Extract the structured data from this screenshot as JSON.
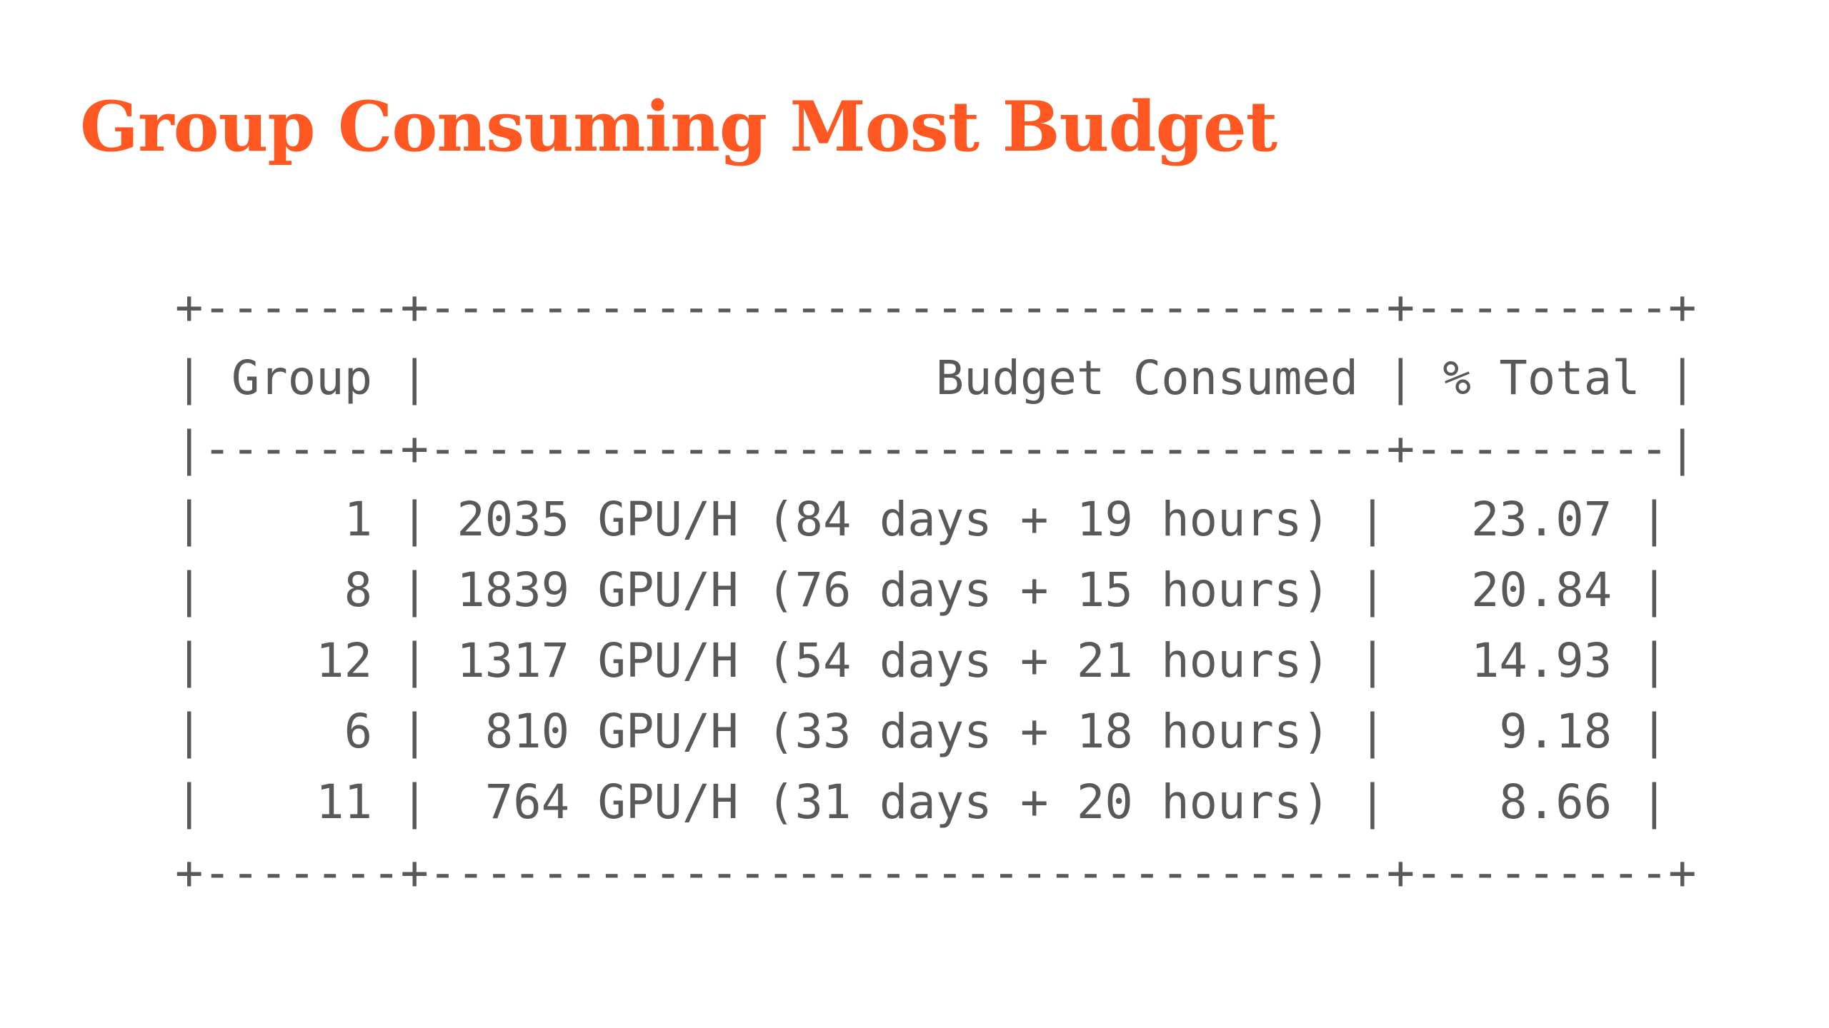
{
  "slide": {
    "title": "Group Consuming Most Budget"
  },
  "table": {
    "lines": {
      "top_border": "+-------+----------------------------------+---------+",
      "header": "| Group |                  Budget Consumed | % Total |",
      "header_separator": "|-------+----------------------------------+---------|",
      "rows": [
        "|     1 | 2035 GPU/H (84 days + 19 hours) |   23.07 |",
        "|     8 | 1839 GPU/H (76 days + 15 hours) |   20.84 |",
        "|    12 | 1317 GPU/H (54 days + 21 hours) |   14.93 |",
        "|     6 |  810 GPU/H (33 days + 18 hours) |    9.18 |",
        "|    11 |  764 GPU/H (31 days + 20 hours) |    8.66 |"
      ],
      "bottom_border": "+-------+----------------------------------+---------+"
    },
    "columns": [
      "Group",
      "Budget Consumed",
      "% Total"
    ],
    "data": [
      {
        "group": "1",
        "budget": "2035 GPU/H (84 days + 19 hours)",
        "percent": "23.07"
      },
      {
        "group": "8",
        "budget": "1839 GPU/H (76 days + 15 hours)",
        "percent": "20.84"
      },
      {
        "group": "12",
        "budget": "1317 GPU/H (54 days + 21 hours)",
        "percent": "14.93"
      },
      {
        "group": "6",
        "budget": "810 GPU/H (33 days + 18 hours)",
        "percent": "9.18"
      },
      {
        "group": "11",
        "budget": "764 GPU/H (31 days + 20 hours)",
        "percent": "8.66"
      }
    ]
  },
  "colors": {
    "title": "#ff5722",
    "table_text": "#595959",
    "background": "#ffffff"
  }
}
